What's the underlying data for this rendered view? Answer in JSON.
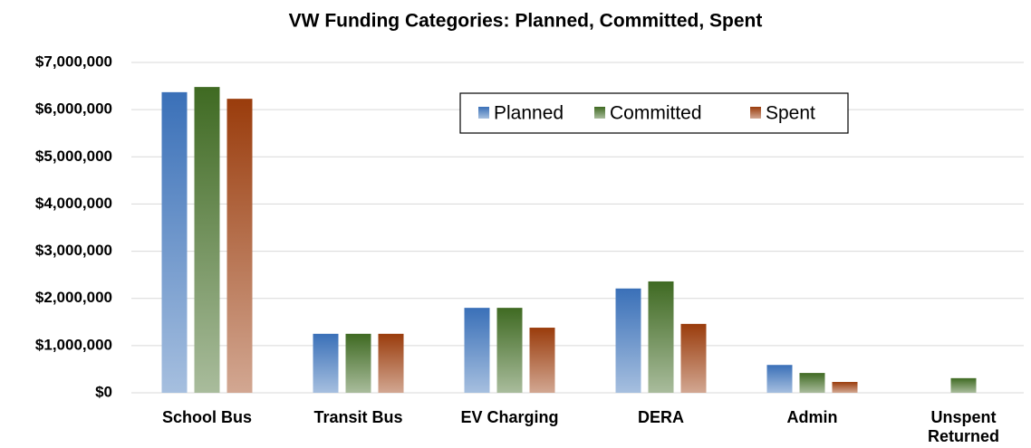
{
  "chart_data": {
    "type": "bar",
    "title": "VW Funding Categories: Planned, Committed, Spent",
    "categories": [
      "School Bus",
      "Transit Bus",
      "EV Charging",
      "DERA",
      "Admin",
      "Unspent Returned"
    ],
    "series": [
      {
        "name": "Planned",
        "color": "#3a70b8",
        "values": [
          6370000,
          1250000,
          1800000,
          2210000,
          590000,
          0
        ]
      },
      {
        "name": "Committed",
        "color": "#3f6a22",
        "values": [
          6480000,
          1250000,
          1800000,
          2360000,
          420000,
          310000
        ]
      },
      {
        "name": "Spent",
        "color": "#9a3c0c",
        "values": [
          6230000,
          1250000,
          1380000,
          1460000,
          230000,
          0
        ]
      }
    ],
    "ylim": [
      0,
      7000000
    ],
    "yticks": [
      {
        "value": 0,
        "label": "$0"
      },
      {
        "value": 1000000,
        "label": "$1,000,000"
      },
      {
        "value": 2000000,
        "label": "$2,000,000"
      },
      {
        "value": 3000000,
        "label": "$3,000,000"
      },
      {
        "value": 4000000,
        "label": "$4,000,000"
      },
      {
        "value": 5000000,
        "label": "$5,000,000"
      },
      {
        "value": 6000000,
        "label": "$6,000,000"
      },
      {
        "value": 7000000,
        "label": "$7,000,000"
      }
    ],
    "grid": true,
    "legend": "top-right"
  }
}
